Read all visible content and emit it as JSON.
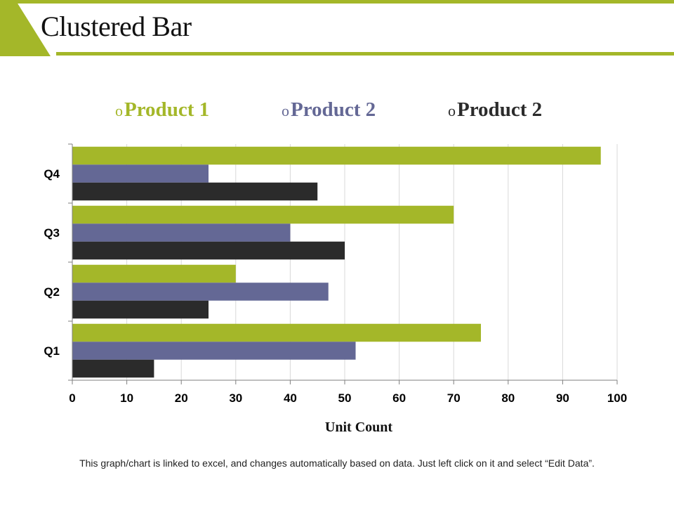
{
  "slide": {
    "title": "Clustered Bar",
    "footnote": "This graph/chart is linked to excel, and changes automatically based on data. Just left click on it and select “Edit Data”.",
    "accent_color": "#a4b729"
  },
  "legend": {
    "marker": "o",
    "items": [
      {
        "label": "Product 1",
        "color": "#a4b729"
      },
      {
        "label": "Product 2",
        "color": "#646895"
      },
      {
        "label": "Product 2",
        "color": "#2b2b2b"
      }
    ]
  },
  "chart_data": {
    "type": "bar",
    "orientation": "horizontal",
    "title": "",
    "xlabel": "Unit Count",
    "ylabel": "",
    "categories": [
      "Q1",
      "Q2",
      "Q3",
      "Q4"
    ],
    "series": [
      {
        "name": "Product 1",
        "color": "#a4b729",
        "values": [
          75,
          30,
          70,
          97
        ]
      },
      {
        "name": "Product 2",
        "color": "#646895",
        "values": [
          52,
          47,
          40,
          25
        ]
      },
      {
        "name": "Product 2",
        "color": "#2b2b2b",
        "values": [
          15,
          25,
          50,
          45
        ]
      }
    ],
    "xlim": [
      0,
      100
    ],
    "xticks": [
      0,
      10,
      20,
      30,
      40,
      50,
      60,
      70,
      80,
      90,
      100
    ],
    "grid": true,
    "legend_position": "top"
  }
}
